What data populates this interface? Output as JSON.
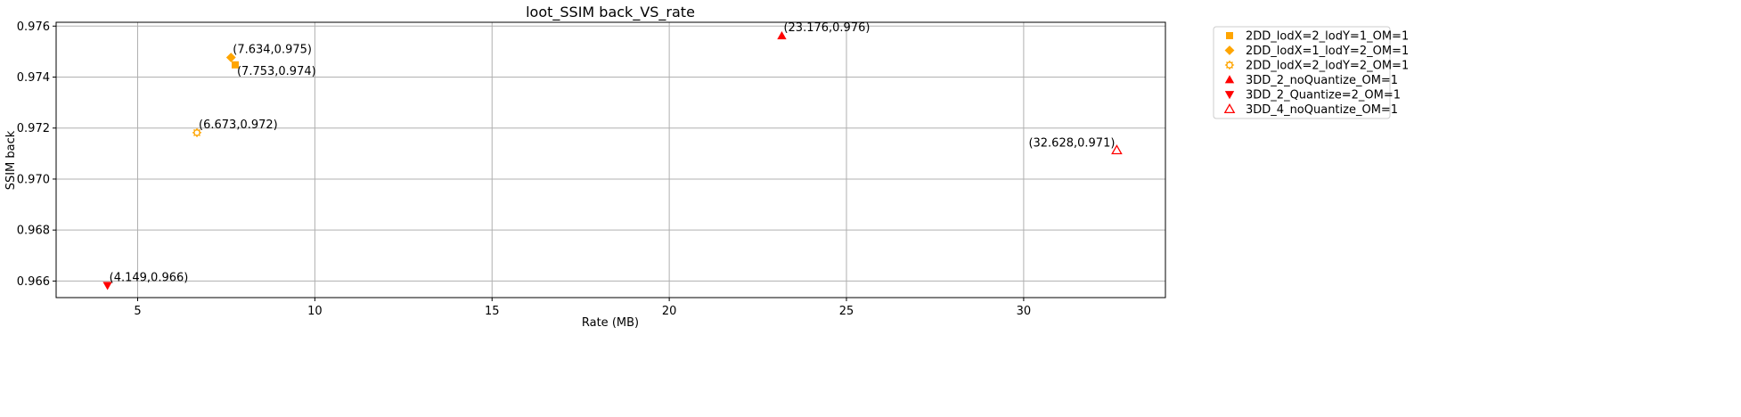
{
  "chart_data": {
    "type": "scatter",
    "title": "loot_SSIM back_VS_rate",
    "xlabel": "Rate (MB)",
    "ylabel": "SSIM back",
    "xlim": [
      2.7,
      34.0
    ],
    "ylim": [
      0.96535,
      0.97615
    ],
    "xticks": [
      5,
      10,
      15,
      20,
      25,
      30
    ],
    "yticks": [
      0.966,
      0.968,
      0.97,
      0.972,
      0.974,
      0.976
    ],
    "xtick_labels": [
      "5",
      "10",
      "15",
      "20",
      "25",
      "30"
    ],
    "ytick_labels": [
      "0.966",
      "0.968",
      "0.970",
      "0.972",
      "0.974",
      "0.976"
    ],
    "grid": true,
    "legend_position": "outside-top-right",
    "series": [
      {
        "name": "2DD_lodX=2_lodY=1_OM=1",
        "marker": "square",
        "filled": true,
        "color": "#ffa500",
        "points": [
          {
            "x": 7.753,
            "y": 0.97448,
            "label": "(7.753,0.974)",
            "label_pos": "below-right"
          }
        ]
      },
      {
        "name": "2DD_lodX=1_lodY=2_OM=1",
        "marker": "diamond",
        "filled": true,
        "color": "#ffa500",
        "points": [
          {
            "x": 7.634,
            "y": 0.97477,
            "label": "(7.634,0.975)",
            "label_pos": "above-right"
          }
        ]
      },
      {
        "name": "2DD_lodX=2_lodY=2_OM=1",
        "marker": "gear",
        "filled": false,
        "color": "#ffa500",
        "points": [
          {
            "x": 6.673,
            "y": 0.97182,
            "label": "(6.673,0.972)",
            "label_pos": "above-right"
          }
        ]
      },
      {
        "name": "3DD_2_noQuantize_OM=1",
        "marker": "triangle-up",
        "filled": true,
        "color": "#ff0000",
        "points": [
          {
            "x": 23.176,
            "y": 0.97562,
            "label": "(23.176,0.976)",
            "label_pos": "above-right"
          }
        ]
      },
      {
        "name": "3DD_2_Quantize=2_OM=1",
        "marker": "triangle-down",
        "filled": true,
        "color": "#ff0000",
        "points": [
          {
            "x": 4.149,
            "y": 0.96583,
            "label": "(4.149,0.966)",
            "label_pos": "above-right"
          }
        ]
      },
      {
        "name": "3DD_4_noQuantize_OM=1",
        "marker": "triangle-up",
        "filled": false,
        "color": "#ff0000",
        "points": [
          {
            "x": 32.628,
            "y": 0.97113,
            "label": "(32.628,0.971)",
            "label_pos": "above-left"
          }
        ]
      }
    ]
  }
}
